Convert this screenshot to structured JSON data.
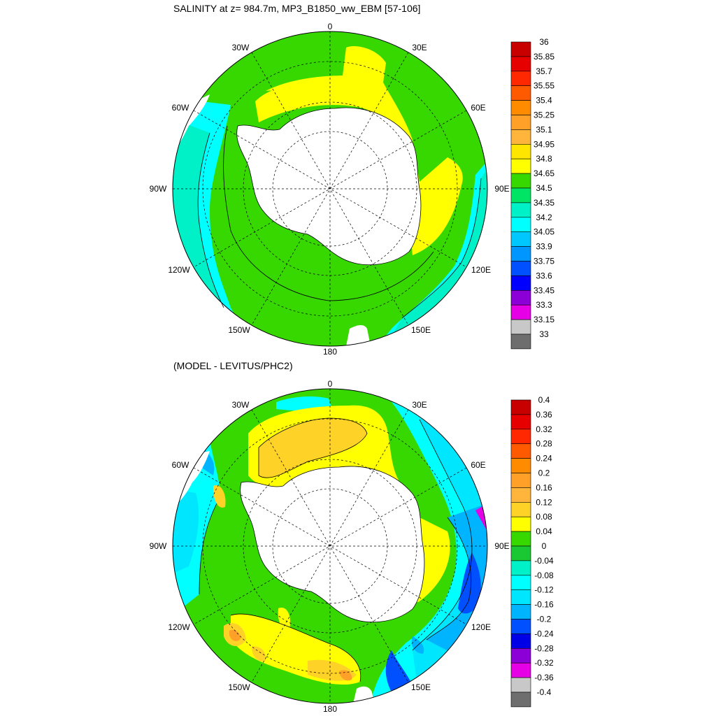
{
  "top_map": {
    "title": "SALINITY at z= 984.7m, MP3_B1850_ww_EBM [57-106]",
    "lon_labels": [
      "0",
      "30E",
      "60E",
      "90E",
      "120E",
      "150E",
      "180",
      "150W",
      "120W",
      "90W",
      "60W",
      "30W"
    ],
    "colorbar": {
      "labels": [
        "36",
        "35.85",
        "35.7",
        "35.55",
        "35.4",
        "35.25",
        "35.1",
        "34.95",
        "34.8",
        "34.65",
        "34.5",
        "34.35",
        "34.2",
        "34.05",
        "33.9",
        "33.75",
        "33.6",
        "33.45",
        "33.3",
        "33.15",
        "33"
      ],
      "colors": [
        "#c80000",
        "#e60000",
        "#ff2800",
        "#ff5a00",
        "#ff8c00",
        "#ffa028",
        "#ffb43c",
        "#ffe600",
        "#ffff00",
        "#37d700",
        "#00e664",
        "#00f0c8",
        "#00ffff",
        "#00c8ff",
        "#0096ff",
        "#0050ff",
        "#0000ff",
        "#8c00d7",
        "#e600e6",
        "#c8c8c8",
        "#6e6e6e"
      ]
    }
  },
  "bottom_map": {
    "title": "(MODEL - LEVITUS/PHC2)",
    "lon_labels": [
      "0",
      "30E",
      "60E",
      "90E",
      "120E",
      "150E",
      "180",
      "150W",
      "120W",
      "90W",
      "60W",
      "30W"
    ],
    "colorbar": {
      "labels": [
        "0.4",
        "0.36",
        "0.32",
        "0.28",
        "0.24",
        "0.2",
        "0.16",
        "0.12",
        "0.08",
        "0.04",
        "0",
        "-0.04",
        "-0.08",
        "-0.12",
        "-0.16",
        "-0.2",
        "-0.24",
        "-0.28",
        "-0.32",
        "-0.36",
        "-0.4"
      ],
      "colors": [
        "#c80000",
        "#e60000",
        "#ff2800",
        "#ff5a00",
        "#ff8c00",
        "#ffa028",
        "#ffb43c",
        "#ffd228",
        "#ffff00",
        "#37d700",
        "#19c832",
        "#00f0c8",
        "#00ffff",
        "#00e6ff",
        "#00b4ff",
        "#0050ff",
        "#0000e6",
        "#8c00d7",
        "#e600e6",
        "#c8c8c8",
        "#6e6e6e"
      ]
    }
  },
  "fill_colors": {
    "land": "#ffffff",
    "yellow": "#ffff00",
    "gold": "#ffd228",
    "green": "#37d700",
    "green2": "#19c832",
    "aqua": "#00f0c8",
    "cyan": "#00ffff",
    "lightblue": "#00e6ff",
    "blue": "#00b4ff",
    "darkblue": "#0050ff",
    "navy": "#0000e6",
    "purple": "#8c00d7",
    "magenta": "#e600e6",
    "orange": "#ffa028",
    "brown": "#c87800"
  }
}
